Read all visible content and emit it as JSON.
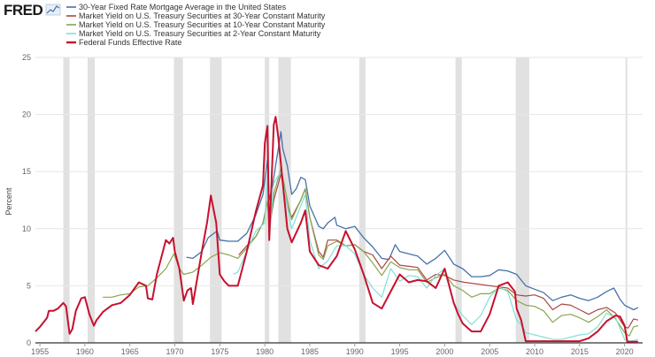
{
  "logo": {
    "text": "FRED"
  },
  "chart_data": {
    "type": "line",
    "title": "",
    "xlabel": "",
    "ylabel": "Percent",
    "xlim": [
      1954.5,
      2022
    ],
    "ylim": [
      0,
      25
    ],
    "xticks": [
      "1955",
      "1960",
      "1965",
      "1970",
      "1975",
      "1980",
      "1985",
      "1990",
      "1995",
      "2000",
      "2005",
      "2010",
      "2015",
      "2020"
    ],
    "yticks": [
      "0",
      "5",
      "10",
      "15",
      "20",
      "25"
    ],
    "grid": "horizontal",
    "recession_color": "#e1e1e1",
    "recessions": [
      [
        1957.6,
        1958.3
      ],
      [
        1960.3,
        1961.1
      ],
      [
        1969.9,
        1970.9
      ],
      [
        1973.9,
        1975.2
      ],
      [
        1980.0,
        1980.5
      ],
      [
        1981.5,
        1982.9
      ],
      [
        1990.5,
        1991.2
      ],
      [
        2001.2,
        2001.9
      ],
      [
        2007.9,
        2009.4
      ],
      [
        2020.1,
        2020.3
      ]
    ],
    "series": [
      {
        "name": "30-Year Fixed Rate Mortgage Average in the United States",
        "color": "#4572a7",
        "stroke_width": 1.3,
        "x": [
          1971.3,
          1972,
          1973,
          1973.7,
          1974,
          1974.7,
          1975,
          1976,
          1977,
          1978,
          1979,
          1979.8,
          1980.3,
          1980.5,
          1980.9,
          1981.5,
          1981.8,
          1982,
          1982.5,
          1983,
          1983.5,
          1984,
          1984.5,
          1985,
          1986,
          1986.5,
          1987,
          1987.8,
          1988,
          1989,
          1990,
          1991,
          1992,
          1993,
          1993.8,
          1994.5,
          1995,
          1996,
          1997,
          1998,
          1999,
          2000,
          2001,
          2002,
          2003,
          2004,
          2005,
          2006,
          2007,
          2008,
          2009,
          2010,
          2011,
          2012,
          2013,
          2014,
          2015,
          2016,
          2017,
          2018,
          2018.8,
          2019.5,
          2020,
          2021,
          2021.5
        ],
        "values": [
          7.5,
          7.4,
          8.0,
          9.2,
          9.4,
          9.8,
          9.0,
          8.9,
          8.9,
          9.6,
          11.2,
          13.0,
          16.0,
          12.5,
          14.0,
          17.0,
          18.5,
          17.0,
          15.5,
          13.0,
          13.5,
          14.5,
          14.3,
          12.0,
          10.2,
          10.0,
          10.5,
          11.0,
          10.3,
          10.0,
          10.2,
          9.2,
          8.4,
          7.4,
          7.3,
          8.6,
          8.0,
          7.8,
          7.6,
          6.9,
          7.4,
          8.1,
          6.9,
          6.5,
          5.8,
          5.8,
          5.9,
          6.4,
          6.3,
          6.0,
          5.0,
          4.7,
          4.4,
          3.7,
          4.0,
          4.2,
          3.9,
          3.7,
          4.0,
          4.5,
          4.8,
          3.8,
          3.3,
          2.9,
          3.1
        ]
      },
      {
        "name": "Market Yield on U.S. Treasury Securities at 30-Year Constant Maturity",
        "color": "#aa4643",
        "stroke_width": 1.2,
        "x": [
          1977.1,
          1978,
          1979,
          1979.8,
          1980.3,
          1980.5,
          1981,
          1981.8,
          1982.5,
          1983,
          1984,
          1984.5,
          1985,
          1986,
          1986.5,
          1987,
          1988,
          1989,
          1990,
          1991,
          1992,
          1993,
          1994,
          1995,
          1996,
          1997,
          1998,
          1999,
          2000,
          2001,
          2002.2,
          2006,
          2007,
          2008,
          2009,
          2010,
          2011,
          2012,
          2013,
          2014,
          2015,
          2016,
          2017,
          2018,
          2019,
          2020,
          2020.4,
          2021,
          2021.5
        ],
        "values": [
          7.7,
          8.5,
          9.3,
          10.5,
          12.4,
          10.0,
          12.5,
          14.8,
          12.0,
          11.0,
          12.5,
          13.5,
          11.0,
          8.0,
          7.5,
          9.0,
          9.0,
          8.5,
          8.6,
          8.0,
          7.7,
          6.5,
          7.6,
          6.8,
          6.7,
          6.6,
          5.5,
          6.0,
          5.9,
          5.5,
          5.3,
          4.9,
          4.8,
          4.2,
          4.1,
          4.2,
          3.9,
          2.9,
          3.4,
          3.3,
          2.9,
          2.5,
          2.9,
          3.1,
          2.6,
          1.4,
          1.3,
          2.1,
          2.0
        ]
      },
      {
        "name": "Market Yield on U.S. Treasury Securities at 10-Year Constant Maturity",
        "color": "#89a54e",
        "stroke_width": 1.2,
        "x": [
          1962,
          1963,
          1964,
          1965,
          1966,
          1967,
          1968,
          1969,
          1969.9,
          1970.5,
          1971,
          1972,
          1973,
          1974,
          1975,
          1976,
          1977,
          1978,
          1979,
          1979.8,
          1980.3,
          1980.5,
          1981,
          1981.8,
          1982.5,
          1983,
          1984,
          1984.5,
          1985,
          1986,
          1986.5,
          1987,
          1988,
          1989,
          1990,
          1991,
          1992,
          1993,
          1994,
          1995,
          1996,
          1997,
          1998,
          1999,
          2000,
          2001,
          2002,
          2003,
          2004,
          2005,
          2006,
          2007,
          2008,
          2009,
          2010,
          2011,
          2012,
          2013,
          2014,
          2015,
          2016,
          2017,
          2018,
          2019,
          2020,
          2020.5,
          2021,
          2021.5
        ],
        "values": [
          4.0,
          4.0,
          4.2,
          4.3,
          4.9,
          5.0,
          5.7,
          6.5,
          7.8,
          6.5,
          6.0,
          6.2,
          6.8,
          7.5,
          7.9,
          7.7,
          7.4,
          8.3,
          9.3,
          10.5,
          12.4,
          10.0,
          13.0,
          15.3,
          12.5,
          10.8,
          12.5,
          13.5,
          11.0,
          7.7,
          7.3,
          8.5,
          8.9,
          8.5,
          8.6,
          8.0,
          7.0,
          5.9,
          7.1,
          6.6,
          6.4,
          6.4,
          5.3,
          5.7,
          6.0,
          5.0,
          4.6,
          4.0,
          4.3,
          4.3,
          4.8,
          4.6,
          3.7,
          3.3,
          3.2,
          2.8,
          1.8,
          2.4,
          2.5,
          2.2,
          1.8,
          2.3,
          2.9,
          2.1,
          0.9,
          0.6,
          1.4,
          1.5
        ]
      },
      {
        "name": "Market Yield on U.S. Treasury Securities at 2-Year Constant Maturity",
        "color": "#80e0d8",
        "stroke_width": 1.2,
        "x": [
          1976.5,
          1977,
          1978,
          1979,
          1980,
          1980.3,
          1980.5,
          1981,
          1981.8,
          1982.5,
          1983,
          1984,
          1984.5,
          1985,
          1986,
          1987,
          1988,
          1989,
          1990,
          1991,
          1992,
          1993,
          1994,
          1995,
          1996,
          1997,
          1998,
          1999,
          2000,
          2001,
          2002,
          2003,
          2004,
          2005,
          2006,
          2007,
          2008,
          2008.5,
          2009,
          2010,
          2011,
          2012,
          2013,
          2014,
          2015,
          2016,
          2017,
          2018,
          2019,
          2020,
          2020.5,
          2021,
          2021.5
        ],
        "values": [
          6.0,
          6.2,
          8.0,
          9.8,
          10.5,
          14.5,
          9.0,
          14.0,
          15.0,
          12.0,
          10.0,
          12.0,
          13.0,
          9.0,
          6.5,
          7.2,
          8.5,
          8.5,
          7.8,
          6.0,
          4.8,
          4.0,
          6.5,
          5.4,
          5.9,
          5.8,
          4.8,
          5.9,
          6.5,
          3.5,
          2.4,
          1.6,
          2.4,
          4.0,
          4.9,
          4.5,
          2.0,
          1.6,
          0.9,
          0.7,
          0.5,
          0.3,
          0.3,
          0.5,
          0.7,
          0.8,
          1.4,
          2.6,
          2.2,
          0.3,
          0.15,
          0.2,
          0.3
        ]
      },
      {
        "name": "Federal Funds Effective Rate",
        "color": "#c8102e",
        "stroke_width": 2.0,
        "x": [
          1954.5,
          1955,
          1955.8,
          1956,
          1956.5,
          1957,
          1957.6,
          1957.9,
          1958.3,
          1958.6,
          1959,
          1959.6,
          1960,
          1960.5,
          1961,
          1961.3,
          1961.8,
          1962,
          1963,
          1964,
          1965,
          1966,
          1966.8,
          1967,
          1967.5,
          1968,
          1969,
          1969.4,
          1969.8,
          1970,
          1970.5,
          1971,
          1971.4,
          1971.8,
          1972,
          1973,
          1973.6,
          1974,
          1974.6,
          1975,
          1975.5,
          1976,
          1977,
          1978,
          1979,
          1979.8,
          1980,
          1980.3,
          1980.5,
          1981,
          1981.2,
          1981.5,
          1982,
          1982.5,
          1983,
          1984,
          1984.5,
          1985,
          1986,
          1987,
          1988,
          1989,
          1990,
          1991,
          1992,
          1993,
          1994,
          1995,
          1996,
          1997,
          1998,
          1999,
          2000,
          2001,
          2001.5,
          2002,
          2003,
          2004,
          2005,
          2006,
          2007,
          2007.8,
          2008,
          2008.5,
          2009,
          2012,
          2015,
          2016,
          2017,
          2018,
          2019,
          2019.5,
          2020,
          2020.3,
          2021,
          2021.5
        ],
        "values": [
          1.0,
          1.4,
          2.2,
          2.8,
          2.8,
          3.0,
          3.5,
          3.2,
          0.8,
          1.2,
          2.8,
          3.9,
          4.0,
          2.5,
          1.5,
          2.0,
          2.5,
          2.7,
          3.3,
          3.5,
          4.2,
          5.3,
          5.0,
          3.9,
          3.8,
          6.0,
          9.0,
          8.7,
          9.2,
          8.0,
          6.5,
          3.7,
          4.6,
          4.8,
          3.4,
          8.0,
          10.6,
          12.9,
          10.5,
          6.0,
          5.4,
          5.0,
          5.0,
          8.0,
          11.5,
          13.8,
          17.5,
          19.0,
          9.0,
          19.1,
          19.8,
          18.0,
          14.0,
          10.0,
          8.8,
          10.5,
          11.6,
          8.0,
          6.8,
          6.5,
          7.6,
          9.8,
          8.2,
          6.0,
          3.5,
          3.0,
          4.5,
          6.0,
          5.3,
          5.5,
          5.4,
          4.8,
          6.5,
          3.5,
          2.5,
          1.7,
          1.0,
          1.0,
          2.5,
          5.0,
          5.3,
          4.5,
          3.0,
          2.0,
          0.15,
          0.15,
          0.15,
          0.4,
          1.0,
          1.9,
          2.4,
          2.3,
          1.5,
          0.1,
          0.1,
          0.1
        ]
      }
    ]
  }
}
